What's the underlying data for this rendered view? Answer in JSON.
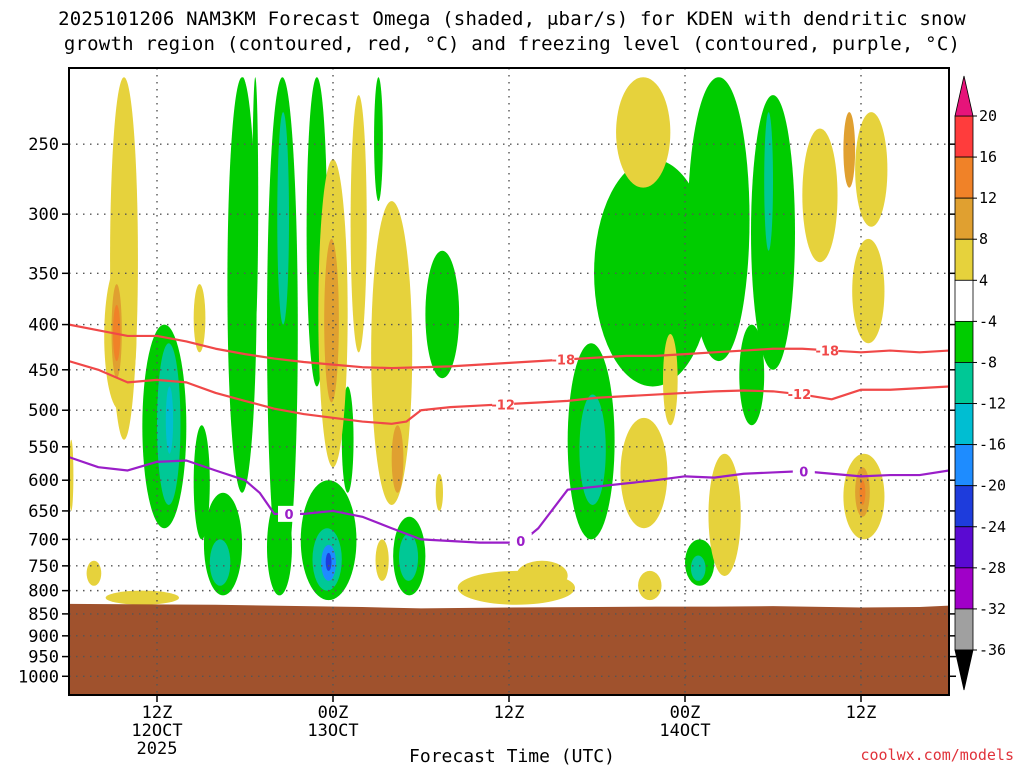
{
  "title_line1": "2025101206 NAM3KM Forecast Omega (shaded, μbar/s) for KDEN with dendritic snow",
  "title_line2": "growth region (contoured, red, °C) and freezing level (contoured, purple, °C)",
  "x_axis_title": "Forecast Time (UTC)",
  "credit": "coolwx.com/models",
  "colors": {
    "frame": "#000000",
    "grid": "#555555",
    "terrain": "#a0522d",
    "dgz_contour": "#f04848",
    "freezing_contour": "#9a1ec8"
  },
  "chart_data": {
    "type": "heatmap",
    "title": "2025101206 NAM3KM Forecast Omega (shaded, μbar/s) for KDEN with dendritic snow growth region (contoured, red, °C) and freezing level (contoured, purple, °C)",
    "xlabel": "Forecast Time (UTC)",
    "ylabel": "",
    "y_scale": "log-pressure (inverted)",
    "ylim_hPa": [
      1050,
      205
    ],
    "xlim_forecast_hours": [
      0,
      60
    ],
    "grid": true,
    "y_ticks": [
      250,
      300,
      350,
      400,
      450,
      500,
      550,
      600,
      650,
      700,
      750,
      800,
      850,
      900,
      950,
      1000
    ],
    "x_ticks": [
      {
        "forecast_hour": 6,
        "labels": [
          "12Z",
          "12OCT",
          "2025"
        ]
      },
      {
        "forecast_hour": 18,
        "labels": [
          "00Z",
          "13OCT"
        ]
      },
      {
        "forecast_hour": 30,
        "labels": [
          "12Z"
        ]
      },
      {
        "forecast_hour": 42,
        "labels": [
          "00Z",
          "14OCT"
        ]
      },
      {
        "forecast_hour": 54,
        "labels": [
          "12Z"
        ]
      }
    ],
    "colorbar": {
      "labels": [
        20,
        16,
        12,
        8,
        4,
        -4,
        -8,
        -12,
        -16,
        -20,
        -24,
        -28,
        -32,
        -36
      ],
      "bands": [
        {
          "from": 16,
          "to": 20,
          "color": "#ff3c3c"
        },
        {
          "from": 12,
          "to": 16,
          "color": "#f08228"
        },
        {
          "from": 8,
          "to": 12,
          "color": "#e0a030"
        },
        {
          "from": 4,
          "to": 8,
          "color": "#e6d23c"
        },
        {
          "from": -4,
          "to": 4,
          "color": "#ffffff"
        },
        {
          "from": -8,
          "to": -4,
          "color": "#00cc00"
        },
        {
          "from": -12,
          "to": -8,
          "color": "#00c896"
        },
        {
          "from": -16,
          "to": -12,
          "color": "#00bed2"
        },
        {
          "from": -20,
          "to": -16,
          "color": "#1e8cff"
        },
        {
          "from": -24,
          "to": -20,
          "color": "#1e3cdc"
        },
        {
          "from": -28,
          "to": -24,
          "color": "#5a0ad2"
        },
        {
          "from": -32,
          "to": -28,
          "color": "#a000c8"
        },
        {
          "from": -36,
          "to": -32,
          "color": "#a0a0a0"
        }
      ],
      "top_arrow_color": "#e6147a",
      "bottom_arrow_color": "#000000"
    },
    "omega_regions": [
      {
        "omega_class": "-4 to -8",
        "color": "#00cc00",
        "t0": 13.5,
        "t1": 15.6,
        "p_top": 210,
        "p_bottom": 780
      },
      {
        "omega_class": "-8 to -12",
        "color": "#00c896",
        "t0": 14.2,
        "t1": 15.0,
        "p_top": 230,
        "p_bottom": 400
      },
      {
        "omega_class": "-4 to -8",
        "color": "#00cc00",
        "t0": 10.8,
        "t1": 12.8,
        "p_top": 210,
        "p_bottom": 620
      },
      {
        "omega_class": "-4 to -8",
        "color": "#00cc00",
        "t0": 11.3,
        "t1": 12.4,
        "p_top": 210,
        "p_bottom": 380
      },
      {
        "omega_class": "-4 to -8",
        "color": "#00cc00",
        "t0": 12.5,
        "t1": 12.9,
        "p_top": 210,
        "p_bottom": 400
      },
      {
        "omega_class": "-4 to -8",
        "color": "#00cc00",
        "t0": 16.2,
        "t1": 17.6,
        "p_top": 210,
        "p_bottom": 470
      },
      {
        "omega_class": "-4 to -8",
        "color": "#00cc00",
        "t0": 20.8,
        "t1": 21.4,
        "p_top": 210,
        "p_bottom": 290
      },
      {
        "omega_class": "-4 to -8",
        "color": "#00cc00",
        "t0": 24.3,
        "t1": 26.6,
        "p_top": 330,
        "p_bottom": 460
      },
      {
        "omega_class": "-4 to -8",
        "color": "#00cc00",
        "t0": 5.0,
        "t1": 8.0,
        "p_top": 400,
        "p_bottom": 680
      },
      {
        "omega_class": "-8 to -12",
        "color": "#00c896",
        "t0": 6.0,
        "t1": 7.6,
        "p_top": 420,
        "p_bottom": 640
      },
      {
        "omega_class": "-12 to -16",
        "color": "#00bed2",
        "t0": 6.6,
        "t1": 7.1,
        "p_top": 470,
        "p_bottom": 560
      },
      {
        "omega_class": "-4 to -8",
        "color": "#00cc00",
        "t0": 8.5,
        "t1": 9.6,
        "p_top": 520,
        "p_bottom": 700
      },
      {
        "omega_class": "-4 to -8",
        "color": "#00cc00",
        "t0": 9.2,
        "t1": 11.8,
        "p_top": 620,
        "p_bottom": 810
      },
      {
        "omega_class": "-8 to -12",
        "color": "#00c896",
        "t0": 9.6,
        "t1": 11.0,
        "p_top": 700,
        "p_bottom": 790
      },
      {
        "omega_class": "-4 to -8",
        "color": "#00cc00",
        "t0": 13.5,
        "t1": 15.2,
        "p_top": 630,
        "p_bottom": 810
      },
      {
        "omega_class": "-4 to -8",
        "color": "#00cc00",
        "t0": 15.8,
        "t1": 19.6,
        "p_top": 600,
        "p_bottom": 820
      },
      {
        "omega_class": "-8 to -12",
        "color": "#00c896",
        "t0": 16.6,
        "t1": 18.6,
        "p_top": 680,
        "p_bottom": 800
      },
      {
        "omega_class": "-16 to -20",
        "color": "#1e8cff",
        "t0": 17.2,
        "t1": 18.2,
        "p_top": 710,
        "p_bottom": 780
      },
      {
        "omega_class": "-20 to -24",
        "color": "#1e3cdc",
        "t0": 17.5,
        "t1": 17.9,
        "p_top": 725,
        "p_bottom": 760
      },
      {
        "omega_class": "-4 to -8",
        "color": "#00cc00",
        "t0": 18.6,
        "t1": 19.4,
        "p_top": 470,
        "p_bottom": 620
      },
      {
        "omega_class": "-4 to -8",
        "color": "#00cc00",
        "t0": 22.1,
        "t1": 24.3,
        "p_top": 660,
        "p_bottom": 810
      },
      {
        "omega_class": "-8 to -12",
        "color": "#00c896",
        "t0": 22.5,
        "t1": 23.8,
        "p_top": 690,
        "p_bottom": 780
      },
      {
        "omega_class": "-4 to -8",
        "color": "#00cc00",
        "t0": 34.0,
        "t1": 37.2,
        "p_top": 420,
        "p_bottom": 700
      },
      {
        "omega_class": "-8 to -12",
        "color": "#00c896",
        "t0": 34.8,
        "t1": 36.6,
        "p_top": 480,
        "p_bottom": 640
      },
      {
        "omega_class": "-4 to -8",
        "color": "#00cc00",
        "t0": 35.8,
        "t1": 43.8,
        "p_top": 260,
        "p_bottom": 470
      },
      {
        "omega_class": "-4 to -8",
        "color": "#00cc00",
        "t0": 42.2,
        "t1": 46.4,
        "p_top": 210,
        "p_bottom": 440
      },
      {
        "omega_class": "-4 to -8",
        "color": "#00cc00",
        "t0": 45.7,
        "t1": 47.4,
        "p_top": 400,
        "p_bottom": 520
      },
      {
        "omega_class": "-4 to -8",
        "color": "#00cc00",
        "t0": 46.5,
        "t1": 49.5,
        "p_top": 220,
        "p_bottom": 450
      },
      {
        "omega_class": "-8 to -12",
        "color": "#00c896",
        "t0": 47.4,
        "t1": 48.0,
        "p_top": 230,
        "p_bottom": 330
      },
      {
        "omega_class": "-4 to -8",
        "color": "#00cc00",
        "t0": 42.0,
        "t1": 44.0,
        "p_top": 700,
        "p_bottom": 790
      },
      {
        "omega_class": "-8 to -12",
        "color": "#00c896",
        "t0": 42.4,
        "t1": 43.4,
        "p_top": 730,
        "p_bottom": 780
      },
      {
        "omega_class": "4 to 8",
        "color": "#e6d23c",
        "t0": 2.8,
        "t1": 4.7,
        "p_top": 210,
        "p_bottom": 540
      },
      {
        "omega_class": "4 to 8",
        "color": "#e6d23c",
        "t0": 2.4,
        "t1": 4.6,
        "p_top": 340,
        "p_bottom": 500
      },
      {
        "omega_class": "8 to 12",
        "color": "#e0a030",
        "t0": 2.9,
        "t1": 3.6,
        "p_top": 360,
        "p_bottom": 460
      },
      {
        "omega_class": "12 to 16",
        "color": "#f08228",
        "t0": 3.0,
        "t1": 3.5,
        "p_top": 380,
        "p_bottom": 440
      },
      {
        "omega_class": "4 to 8",
        "color": "#e6d23c",
        "t0": 8.5,
        "t1": 9.3,
        "p_top": 360,
        "p_bottom": 430
      },
      {
        "omega_class": "4 to 8",
        "color": "#e6d23c",
        "t0": 17.0,
        "t1": 19.0,
        "p_top": 260,
        "p_bottom": 580
      },
      {
        "omega_class": "8 to 12",
        "color": "#e0a030",
        "t0": 17.4,
        "t1": 18.4,
        "p_top": 320,
        "p_bottom": 490
      },
      {
        "omega_class": "4 to 8",
        "color": "#e6d23c",
        "t0": 19.2,
        "t1": 20.3,
        "p_top": 220,
        "p_bottom": 430
      },
      {
        "omega_class": "4 to 8",
        "color": "#e6d23c",
        "t0": 20.6,
        "t1": 23.4,
        "p_top": 290,
        "p_bottom": 640
      },
      {
        "omega_class": "8 to 12",
        "color": "#e0a030",
        "t0": 22.0,
        "t1": 22.8,
        "p_top": 520,
        "p_bottom": 620
      },
      {
        "omega_class": "4 to 8",
        "color": "#e6d23c",
        "t0": 25.0,
        "t1": 25.5,
        "p_top": 590,
        "p_bottom": 650
      },
      {
        "omega_class": "4 to 8",
        "color": "#e6d23c",
        "t0": 20.9,
        "t1": 21.8,
        "p_top": 700,
        "p_bottom": 780
      },
      {
        "omega_class": "4 to 8",
        "color": "#e6d23c",
        "t0": 37.3,
        "t1": 41.0,
        "p_top": 210,
        "p_bottom": 280
      },
      {
        "omega_class": "4 to 8",
        "color": "#e6d23c",
        "t0": 40.5,
        "t1": 41.5,
        "p_top": 410,
        "p_bottom": 520
      },
      {
        "omega_class": "4 to 8",
        "color": "#e6d23c",
        "t0": 37.6,
        "t1": 40.8,
        "p_top": 510,
        "p_bottom": 680
      },
      {
        "omega_class": "4 to 8",
        "color": "#e6d23c",
        "t0": 43.6,
        "t1": 45.8,
        "p_top": 560,
        "p_bottom": 770
      },
      {
        "omega_class": "4 to 8",
        "color": "#e6d23c",
        "t0": 53.6,
        "t1": 55.8,
        "p_top": 230,
        "p_bottom": 310
      },
      {
        "omega_class": "8 to 12",
        "color": "#e0a030",
        "t0": 52.8,
        "t1": 53.6,
        "p_top": 230,
        "p_bottom": 280
      },
      {
        "omega_class": "4 to 8",
        "color": "#e6d23c",
        "t0": 50.0,
        "t1": 52.4,
        "p_top": 240,
        "p_bottom": 340
      },
      {
        "omega_class": "4 to 8",
        "color": "#e6d23c",
        "t0": 53.4,
        "t1": 55.6,
        "p_top": 320,
        "p_bottom": 420
      },
      {
        "omega_class": "4 to 8",
        "color": "#e6d23c",
        "t0": 52.8,
        "t1": 55.6,
        "p_top": 560,
        "p_bottom": 700
      },
      {
        "omega_class": "8 to 12",
        "color": "#e0a030",
        "t0": 53.6,
        "t1": 54.6,
        "p_top": 580,
        "p_bottom": 660
      },
      {
        "omega_class": "12 to 16",
        "color": "#f08228",
        "t0": 53.9,
        "t1": 54.3,
        "p_top": 600,
        "p_bottom": 640
      },
      {
        "omega_class": "4 to 8",
        "color": "#e6d23c",
        "t0": 26.5,
        "t1": 34.5,
        "p_top": 760,
        "p_bottom": 830
      },
      {
        "omega_class": "4 to 8",
        "color": "#e6d23c",
        "t0": 30.5,
        "t1": 34.0,
        "p_top": 740,
        "p_bottom": 800
      },
      {
        "omega_class": "4 to 8",
        "color": "#e6d23c",
        "t0": 38.8,
        "t1": 40.4,
        "p_top": 760,
        "p_bottom": 820
      },
      {
        "omega_class": "4 to 8",
        "color": "#e6d23c",
        "t0": 1.2,
        "t1": 2.2,
        "p_top": 740,
        "p_bottom": 790
      },
      {
        "omega_class": "4 to 8",
        "color": "#e6d23c",
        "t0": 2.5,
        "t1": 7.5,
        "p_top": 800,
        "p_bottom": 830
      },
      {
        "omega_class": "4 to 8",
        "color": "#e6d23c",
        "t0": 0.0,
        "t1": 0.3,
        "p_top": 540,
        "p_bottom": 650
      }
    ],
    "contours": [
      {
        "name": "-18",
        "kind": "dendritic snow growth",
        "color": "#f04848",
        "x": [
          0,
          2,
          4,
          6,
          8,
          10,
          12,
          14,
          16,
          18,
          20,
          22,
          24,
          26,
          28,
          30,
          32,
          34,
          36,
          38,
          40,
          42,
          44,
          46,
          48,
          50,
          52,
          54,
          56,
          58,
          60
        ],
        "y": [
          400,
          406,
          412,
          412,
          418,
          426,
          432,
          437,
          441,
          444,
          447,
          448,
          447,
          446,
          444,
          442,
          440,
          438,
          436,
          434,
          434,
          432,
          430,
          428,
          426,
          426,
          428,
          430,
          428,
          430,
          428
        ],
        "labels_at": [
          33.7,
          51.7
        ]
      },
      {
        "name": "-12",
        "kind": "dendritic snow growth",
        "color": "#f04848",
        "x": [
          0,
          2,
          4,
          6,
          8,
          10,
          12,
          14,
          16,
          18,
          20,
          22,
          23,
          24,
          26,
          28,
          30,
          32,
          34,
          36,
          38,
          40,
          42,
          44,
          46,
          48,
          50,
          52,
          54,
          56,
          58,
          60
        ],
        "y": [
          440,
          450,
          465,
          462,
          465,
          478,
          488,
          498,
          505,
          510,
          515,
          518,
          515,
          500,
          496,
          494,
          492,
          490,
          488,
          484,
          482,
          480,
          478,
          476,
          475,
          476,
          480,
          486,
          474,
          474,
          472,
          470
        ],
        "labels_at": [
          29.6,
          49.8
        ]
      },
      {
        "name": "0",
        "kind": "freezing level",
        "color": "#9a1ec8",
        "x": [
          0,
          2,
          4,
          6,
          8,
          10,
          12,
          13,
          14,
          16,
          18,
          20,
          22,
          24,
          26,
          28,
          29,
          30,
          31,
          32,
          34,
          36,
          38,
          40,
          42,
          44,
          46,
          48,
          50,
          52,
          54,
          56,
          58,
          60
        ],
        "y": [
          565,
          580,
          585,
          572,
          570,
          585,
          600,
          620,
          655,
          655,
          650,
          660,
          680,
          700,
          703,
          706,
          706,
          706,
          702,
          680,
          615,
          610,
          605,
          600,
          594,
          596,
          590,
          588,
          586,
          590,
          594,
          592,
          592,
          585
        ],
        "labels_at": [
          15.0,
          30.8,
          50.1
        ]
      }
    ],
    "terrain": {
      "surface_hPa": 830,
      "x": [
        0,
        10,
        20,
        24,
        30,
        36,
        40,
        44,
        48,
        54,
        58,
        60
      ],
      "y": [
        828,
        830,
        835,
        838,
        836,
        835,
        834,
        834,
        833,
        836,
        835,
        832
      ]
    }
  }
}
